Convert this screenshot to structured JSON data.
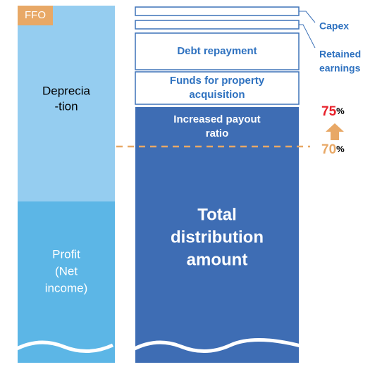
{
  "left_column": {
    "badge": "FFO",
    "depreciation": [
      "Deprecia",
      "-tion"
    ],
    "profit": [
      "Profit",
      "(Net",
      "income)"
    ]
  },
  "right_column": {
    "debt_repayment": "Debt repayment",
    "funds": [
      "Funds for property",
      "acquisition"
    ],
    "increased_payout": [
      "Increased payout",
      "ratio"
    ],
    "total": [
      "Total",
      "distribution",
      "amount"
    ]
  },
  "callouts": {
    "capex": "Capex",
    "retained_earnings": [
      "Retained",
      "earnings"
    ]
  },
  "payout": {
    "to": {
      "number": "75",
      "unit": "%"
    },
    "from": {
      "number": "70",
      "unit": "%"
    }
  }
}
